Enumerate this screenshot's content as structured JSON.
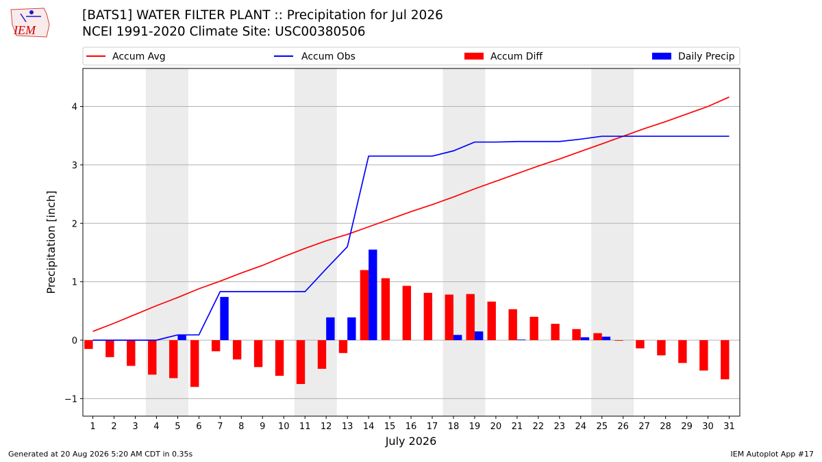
{
  "header": {
    "logo_text": "IEM",
    "title_line1": "[BATS1] WATER FILTER PLANT :: Precipitation for Jul 2026",
    "title_line2": "NCEI 1991-2020 Climate Site: USC00380506"
  },
  "footer": {
    "left": "Generated at 20 Aug 2026 5:20 AM CDT in 0.35s",
    "right": "IEM Autoplot App #17"
  },
  "chart_data": {
    "type": "bar",
    "xlabel": "July 2026",
    "ylabel": "Precipitation [inch]",
    "ylim": [
      -1.3,
      4.65
    ],
    "yticks": [
      -1,
      0,
      1,
      2,
      3,
      4
    ],
    "ytick_labels": [
      "−1",
      "0",
      "1",
      "2",
      "3",
      "4"
    ],
    "x": [
      1,
      2,
      3,
      4,
      5,
      6,
      7,
      8,
      9,
      10,
      11,
      12,
      13,
      14,
      15,
      16,
      17,
      18,
      19,
      20,
      21,
      22,
      23,
      24,
      25,
      26,
      27,
      28,
      29,
      30,
      31
    ],
    "weekend_shading": [
      [
        4,
        5
      ],
      [
        11,
        12
      ],
      [
        18,
        19
      ],
      [
        25,
        26
      ]
    ],
    "grid": "horizontal",
    "legend": {
      "placement": "top",
      "entries": [
        {
          "label": "Accum Avg",
          "kind": "line",
          "color": "#ff0000"
        },
        {
          "label": "Accum Obs",
          "kind": "line",
          "color": "#0000ff"
        },
        {
          "label": "Accum Diff",
          "kind": "bar",
          "color": "#ff0000"
        },
        {
          "label": "Daily Precip",
          "kind": "bar",
          "color": "#0000ff"
        }
      ]
    },
    "series": [
      {
        "name": "Accum Avg",
        "type": "line",
        "color": "#ff0000",
        "values": [
          0.15,
          0.29,
          0.44,
          0.59,
          0.73,
          0.88,
          1.01,
          1.15,
          1.28,
          1.43,
          1.57,
          1.7,
          1.81,
          1.94,
          2.07,
          2.2,
          2.32,
          2.45,
          2.59,
          2.72,
          2.85,
          2.98,
          3.1,
          3.23,
          3.36,
          3.49,
          3.62,
          3.74,
          3.87,
          4.0,
          4.16
        ]
      },
      {
        "name": "Accum Obs",
        "type": "line",
        "color": "#0000ff",
        "values": [
          0.0,
          0.0,
          0.0,
          0.0,
          0.09,
          0.09,
          0.83,
          0.83,
          0.83,
          0.83,
          0.83,
          1.22,
          1.6,
          3.15,
          3.15,
          3.15,
          3.15,
          3.24,
          3.39,
          3.39,
          3.4,
          3.4,
          3.4,
          3.44,
          3.49,
          3.49,
          3.49,
          3.49,
          3.49,
          3.49,
          3.49
        ]
      },
      {
        "name": "Accum Diff",
        "type": "bar",
        "color": "#ff0000",
        "values": [
          -0.15,
          -0.29,
          -0.44,
          -0.59,
          -0.65,
          -0.8,
          -0.19,
          -0.33,
          -0.46,
          -0.61,
          -0.75,
          -0.49,
          -0.22,
          1.2,
          1.06,
          0.93,
          0.81,
          0.78,
          0.79,
          0.66,
          0.53,
          0.4,
          0.28,
          0.19,
          0.12,
          -0.01,
          -0.14,
          -0.26,
          -0.39,
          -0.52,
          -0.67
        ]
      },
      {
        "name": "Daily Precip",
        "type": "bar",
        "color": "#0000ff",
        "values": [
          0,
          0,
          0,
          0,
          0.09,
          0,
          0.74,
          0,
          0,
          0,
          0,
          0.39,
          0.39,
          1.55,
          0,
          0,
          0,
          0.09,
          0.15,
          0,
          0.01,
          0,
          0,
          0.05,
          0.06,
          0,
          0,
          0,
          0,
          0,
          0
        ]
      }
    ]
  }
}
